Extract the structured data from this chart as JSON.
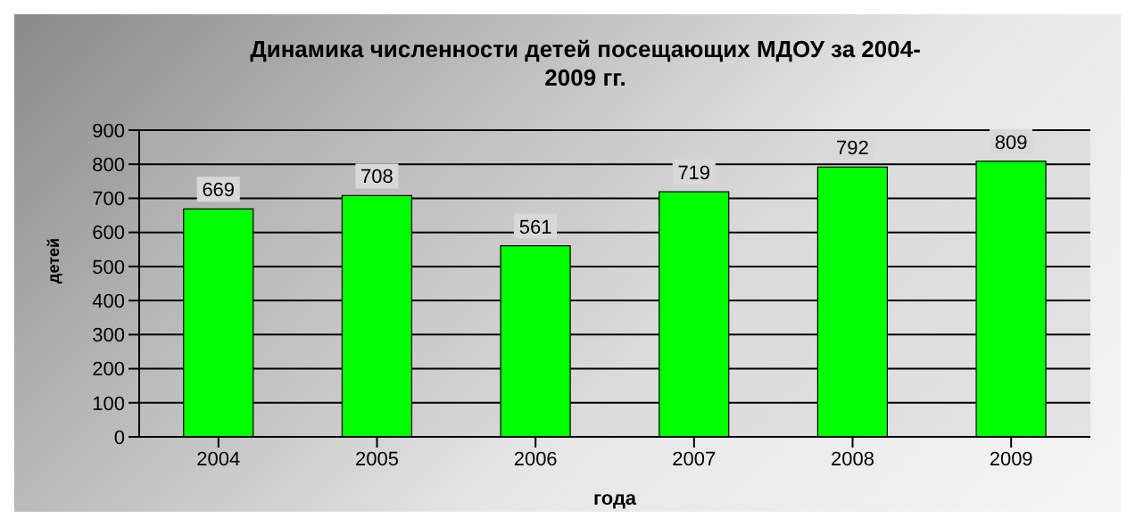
{
  "chart_data": {
    "type": "bar",
    "title": "Динамика численности детей посещающих МДОУ за 2004-2009 гг.",
    "xlabel": "года",
    "ylabel": "детей",
    "categories": [
      "2004",
      "2005",
      "2006",
      "2007",
      "2008",
      "2009"
    ],
    "values": [
      669,
      708,
      561,
      719,
      792,
      809
    ],
    "color": "#00ff00",
    "ylim": [
      0,
      900
    ],
    "yticks": [
      0,
      100,
      200,
      300,
      400,
      500,
      600,
      700,
      800,
      900
    ],
    "grid": "y",
    "data_labels": true
  }
}
